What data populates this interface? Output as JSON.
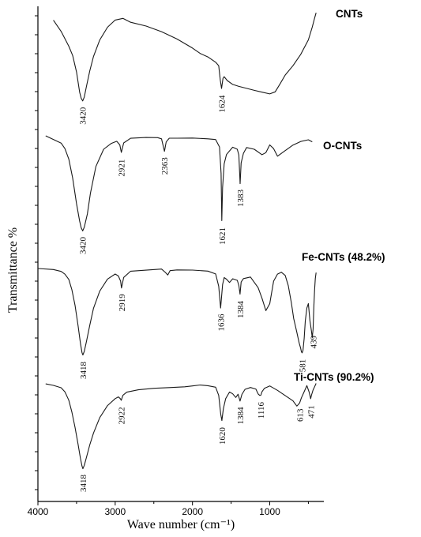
{
  "chart_data": {
    "type": "line",
    "title": "",
    "xlabel": "Wave number (cm⁻¹)",
    "ylabel": "Transmittance %",
    "xlim": [
      4000,
      300
    ],
    "x_reversed": true,
    "x_ticks": [
      4000,
      3000,
      2000,
      1000
    ],
    "y_scale": "arbitrary, vertically offset spectra",
    "grid": false,
    "series": [
      {
        "name": "CNTs",
        "x": [
          3800,
          3700,
          3600,
          3550,
          3500,
          3460,
          3440,
          3420,
          3400,
          3370,
          3330,
          3280,
          3200,
          3100,
          3000,
          2900,
          2800,
          2600,
          2400,
          2200,
          2000,
          1900,
          1800,
          1700,
          1660,
          1640,
          1624,
          1605,
          1590,
          1550,
          1480,
          1400,
          1300,
          1200,
          1100,
          1000,
          930,
          870,
          800,
          700,
          600,
          500,
          450,
          420,
          400
        ],
        "y": [
          10,
          22,
          38,
          48,
          66,
          88,
          95,
          98,
          94,
          82,
          66,
          50,
          32,
          18,
          10,
          8,
          12,
          16,
          22,
          30,
          40,
          46,
          50,
          56,
          60,
          76,
          85,
          74,
          72,
          76,
          80,
          82,
          84,
          86,
          88,
          90,
          88,
          80,
          70,
          60,
          48,
          32,
          18,
          8,
          2
        ],
        "peak_labels": [
          "3420",
          "1624"
        ],
        "peak_x": [
          3420,
          1624
        ]
      },
      {
        "name": "O-CNTs",
        "x": [
          3900,
          3800,
          3700,
          3650,
          3600,
          3550,
          3500,
          3460,
          3440,
          3420,
          3400,
          3360,
          3320,
          3250,
          3150,
          3050,
          2980,
          2940,
          2921,
          2890,
          2800,
          2600,
          2450,
          2400,
          2363,
          2340,
          2300,
          2200,
          2000,
          1800,
          1700,
          1650,
          1630,
          1621,
          1610,
          1590,
          1560,
          1480,
          1420,
          1400,
          1383,
          1370,
          1340,
          1300,
          1200,
          1100,
          1050,
          1000,
          950,
          900,
          800,
          700,
          600,
          500,
          450
        ],
        "y": [
          0,
          4,
          8,
          14,
          25,
          45,
          72,
          90,
          97,
          100,
          96,
          82,
          60,
          32,
          14,
          8,
          6,
          10,
          18,
          8,
          3,
          2,
          2,
          3,
          16,
          6,
          2,
          2,
          2,
          3,
          4,
          12,
          40,
          90,
          55,
          30,
          20,
          12,
          14,
          20,
          50,
          28,
          18,
          12,
          14,
          20,
          18,
          10,
          14,
          22,
          16,
          10,
          6,
          4,
          6
        ],
        "peak_labels": [
          "3420",
          "2921",
          "2363",
          "1621",
          "1383"
        ],
        "peak_x": [
          3420,
          2921,
          2363,
          1621,
          1383
        ]
      },
      {
        "name": "Fe-CNTs (48.2%)",
        "x": [
          4000,
          3800,
          3700,
          3650,
          3600,
          3560,
          3520,
          3480,
          3450,
          3430,
          3418,
          3400,
          3370,
          3330,
          3280,
          3200,
          3100,
          3000,
          2960,
          2930,
          2919,
          2890,
          2800,
          2600,
          2400,
          2350,
          2320,
          2290,
          2200,
          2000,
          1800,
          1700,
          1660,
          1636,
          1610,
          1590,
          1560,
          1520,
          1480,
          1420,
          1400,
          1384,
          1370,
          1340,
          1250,
          1150,
          1100,
          1050,
          1000,
          950,
          900,
          850,
          800,
          760,
          720,
          690,
          650,
          620,
          600,
          590,
          581,
          570,
          555,
          540,
          520,
          500,
          480,
          460,
          450,
          439,
          430,
          420,
          410,
          400
        ],
        "y": [
          0,
          1,
          3,
          6,
          12,
          24,
          42,
          66,
          86,
          97,
          100,
          96,
          84,
          66,
          46,
          26,
          12,
          6,
          8,
          14,
          22,
          10,
          3,
          2,
          1,
          5,
          8,
          3,
          2,
          2,
          3,
          6,
          20,
          45,
          18,
          10,
          12,
          16,
          12,
          14,
          20,
          30,
          16,
          12,
          10,
          22,
          34,
          48,
          40,
          14,
          6,
          4,
          8,
          20,
          40,
          58,
          74,
          86,
          92,
          96,
          97,
          94,
          80,
          60,
          45,
          40,
          60,
          72,
          80,
          70,
          45,
          25,
          12,
          5
        ],
        "peak_labels": [
          "3418",
          "2919",
          "1636",
          "1384",
          "581",
          "439"
        ],
        "peak_x": [
          3418,
          2919,
          1636,
          1384,
          581,
          439
        ]
      },
      {
        "name": "Ti-CNTs (90.2%)",
        "x": [
          3900,
          3800,
          3700,
          3650,
          3600,
          3560,
          3520,
          3480,
          3450,
          3430,
          3418,
          3400,
          3370,
          3330,
          3280,
          3200,
          3100,
          3000,
          2960,
          2935,
          2922,
          2900,
          2850,
          2700,
          2500,
          2300,
          2100,
          2000,
          1900,
          1800,
          1700,
          1660,
          1635,
          1620,
          1600,
          1570,
          1520,
          1480,
          1440,
          1410,
          1384,
          1360,
          1320,
          1250,
          1180,
          1150,
          1130,
          1116,
          1100,
          1070,
          1000,
          900,
          800,
          700,
          650,
          630,
          613,
          590,
          560,
          520,
          490,
          471,
          460,
          440,
          420,
          400
        ],
        "y": [
          0,
          2,
          5,
          10,
          20,
          34,
          52,
          72,
          88,
          97,
          100,
          96,
          86,
          72,
          58,
          40,
          26,
          18,
          16,
          18,
          20,
          14,
          10,
          7,
          5,
          4,
          3,
          2,
          1,
          2,
          4,
          14,
          36,
          44,
          30,
          18,
          10,
          12,
          16,
          12,
          20,
          12,
          6,
          4,
          6,
          12,
          14,
          14,
          10,
          6,
          3,
          8,
          14,
          20,
          26,
          24,
          22,
          16,
          10,
          2,
          10,
          18,
          14,
          8,
          4,
          0
        ],
        "peak_labels": [
          "3418",
          "2922",
          "1620",
          "1384",
          "1116",
          "613",
          "471"
        ],
        "peak_x": [
          3418,
          2922,
          1620,
          1384,
          1116,
          613,
          471
        ]
      }
    ]
  }
}
